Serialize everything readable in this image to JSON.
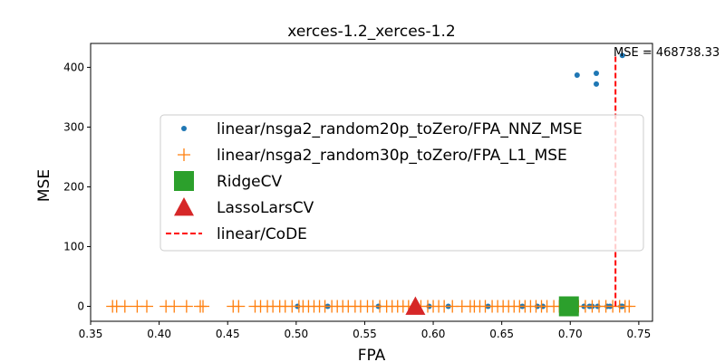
{
  "chart_data": {
    "type": "scatter",
    "title": "xerces-1.2_xerces-1.2",
    "xlabel": "FPA",
    "ylabel": "MSE",
    "xlim": [
      0.35,
      0.76
    ],
    "ylim": [
      -25,
      440
    ],
    "xticks": [
      "0.35",
      "0.40",
      "0.45",
      "0.50",
      "0.55",
      "0.60",
      "0.65",
      "0.70",
      "0.75"
    ],
    "yticks": [
      "0",
      "100",
      "200",
      "300",
      "400"
    ],
    "grid": false,
    "legend_position": "center-right",
    "annotation": "MSE = 468738.33",
    "series": [
      {
        "name": "linear/nsga2_random20p_toZero/FPA_NNZ_MSE",
        "marker": "dot",
        "color": "#1f77b4",
        "points": [
          [
            0.501,
            0
          ],
          [
            0.523,
            0
          ],
          [
            0.56,
            0
          ],
          [
            0.588,
            0
          ],
          [
            0.597,
            0
          ],
          [
            0.611,
            0
          ],
          [
            0.64,
            0
          ],
          [
            0.665,
            0
          ],
          [
            0.676,
            0
          ],
          [
            0.68,
            0
          ],
          [
            0.7,
            0
          ],
          [
            0.71,
            0
          ],
          [
            0.714,
            0
          ],
          [
            0.716,
            0
          ],
          [
            0.72,
            0
          ],
          [
            0.727,
            0
          ],
          [
            0.729,
            0
          ],
          [
            0.737,
            0
          ],
          [
            0.738,
            0
          ],
          [
            0.705,
            387
          ],
          [
            0.719,
            390
          ],
          [
            0.719,
            372
          ],
          [
            0.738,
            420
          ]
        ]
      },
      {
        "name": "linear/nsga2_random30p_toZero/FPA_L1_MSE",
        "marker": "plus",
        "color": "#ff7f0e",
        "points": [
          [
            0.366,
            0
          ],
          [
            0.369,
            0
          ],
          [
            0.375,
            0
          ],
          [
            0.384,
            0
          ],
          [
            0.391,
            0
          ],
          [
            0.405,
            0
          ],
          [
            0.411,
            0
          ],
          [
            0.42,
            0
          ],
          [
            0.43,
            0
          ],
          [
            0.432,
            0
          ],
          [
            0.454,
            0
          ],
          [
            0.458,
            0
          ],
          [
            0.47,
            0
          ],
          [
            0.474,
            0
          ],
          [
            0.479,
            0
          ],
          [
            0.483,
            0
          ],
          [
            0.488,
            0
          ],
          [
            0.492,
            0
          ],
          [
            0.497,
            0
          ],
          [
            0.502,
            0
          ],
          [
            0.505,
            0
          ],
          [
            0.509,
            0
          ],
          [
            0.513,
            0
          ],
          [
            0.517,
            0
          ],
          [
            0.521,
            0
          ],
          [
            0.526,
            0
          ],
          [
            0.53,
            0
          ],
          [
            0.534,
            0
          ],
          [
            0.538,
            0
          ],
          [
            0.543,
            0
          ],
          [
            0.547,
            0
          ],
          [
            0.552,
            0
          ],
          [
            0.556,
            0
          ],
          [
            0.561,
            0
          ],
          [
            0.566,
            0
          ],
          [
            0.57,
            0
          ],
          [
            0.574,
            0
          ],
          [
            0.578,
            0
          ],
          [
            0.582,
            0
          ],
          [
            0.586,
            0
          ],
          [
            0.591,
            0
          ],
          [
            0.596,
            0
          ],
          [
            0.6,
            0
          ],
          [
            0.604,
            0
          ],
          [
            0.608,
            0
          ],
          [
            0.614,
            0
          ],
          [
            0.621,
            0
          ],
          [
            0.627,
            0
          ],
          [
            0.63,
            0
          ],
          [
            0.634,
            0
          ],
          [
            0.638,
            0
          ],
          [
            0.643,
            0
          ],
          [
            0.647,
            0
          ],
          [
            0.651,
            0
          ],
          [
            0.655,
            0
          ],
          [
            0.659,
            0
          ],
          [
            0.663,
            0
          ],
          [
            0.667,
            0
          ],
          [
            0.671,
            0
          ],
          [
            0.675,
            0
          ],
          [
            0.679,
            0
          ],
          [
            0.683,
            0
          ],
          [
            0.688,
            0
          ],
          [
            0.692,
            0
          ],
          [
            0.696,
            0
          ],
          [
            0.701,
            0
          ],
          [
            0.706,
            0
          ],
          [
            0.711,
            0
          ],
          [
            0.716,
            0
          ],
          [
            0.721,
            0
          ],
          [
            0.726,
            0
          ],
          [
            0.731,
            0
          ],
          [
            0.736,
            0
          ],
          [
            0.74,
            0
          ],
          [
            0.743,
            0
          ]
        ]
      },
      {
        "name": "RidgeCV",
        "marker": "square",
        "color": "#2ca02c",
        "points": [
          [
            0.699,
            0
          ]
        ]
      },
      {
        "name": "LassoLarsCV",
        "marker": "triangle",
        "color": "#d62728",
        "points": [
          [
            0.587,
            0
          ]
        ]
      },
      {
        "name": "linear/CoDE",
        "marker": "dashed-vline",
        "color": "#ff0000",
        "x": 0.733,
        "y_range": [
          0,
          420
        ]
      }
    ]
  }
}
